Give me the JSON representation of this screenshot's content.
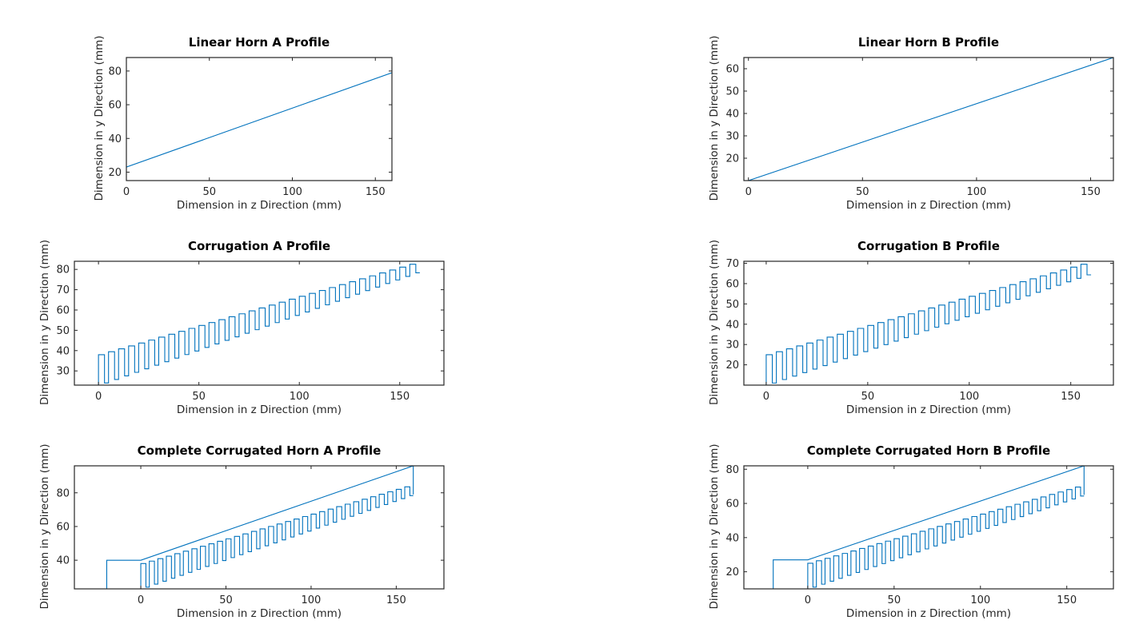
{
  "chart_data": [
    {
      "type": "line",
      "title": "Linear Horn A Profile",
      "xlabel": "Dimension in z Direction (mm)",
      "ylabel": "Dimension in y Direction (mm)",
      "xlim": [
        0,
        160
      ],
      "ylim": [
        15,
        88
      ],
      "xticks": [
        0,
        50,
        100,
        150
      ],
      "yticks": [
        20,
        40,
        60,
        80
      ],
      "grid": false,
      "legend": "none",
      "color": "#0072bd",
      "series": [
        {
          "x": [
            0,
            160
          ],
          "y": [
            23,
            79
          ]
        }
      ]
    },
    {
      "type": "line",
      "title": "Linear Horn B Profile",
      "xlabel": "Dimension in z Direction (mm)",
      "ylabel": "Dimension in y Direction (mm)",
      "xlim": [
        -2,
        160
      ],
      "ylim": [
        10,
        65
      ],
      "xticks": [
        0,
        50,
        100,
        150
      ],
      "yticks": [
        20,
        30,
        40,
        50,
        60
      ],
      "grid": false,
      "legend": "none",
      "color": "#0072bd",
      "series": [
        {
          "x": [
            0,
            160
          ],
          "y": [
            10,
            65
          ]
        }
      ]
    },
    {
      "type": "line",
      "title": "Corrugation A Profile",
      "xlabel": "Dimension in z Direction (mm)",
      "ylabel": "Dimension in y Direction (mm)",
      "xlim": [
        -12,
        172
      ],
      "ylim": [
        23,
        84
      ],
      "xticks": [
        0,
        50,
        100,
        150
      ],
      "yticks": [
        30,
        40,
        50,
        60,
        70,
        80
      ],
      "grid": false,
      "legend": "none",
      "color": "#0072bd",
      "corrugation": {
        "z_start": 0,
        "z_end": 160,
        "periods": 32,
        "tooth_fraction": 0.6,
        "top_start": 38,
        "top_end": 84,
        "bottom_start": 23,
        "bottom_end": 79
      }
    },
    {
      "type": "line",
      "title": "Corrugation B Profile",
      "xlabel": "Dimension in z Direction (mm)",
      "ylabel": "Dimension in y Direction (mm)",
      "xlim": [
        -11,
        171
      ],
      "ylim": [
        10,
        71
      ],
      "xticks": [
        0,
        50,
        100,
        150
      ],
      "yticks": [
        20,
        30,
        40,
        50,
        60,
        70
      ],
      "grid": false,
      "legend": "none",
      "color": "#0072bd",
      "corrugation": {
        "z_start": 0,
        "z_end": 160,
        "periods": 32,
        "tooth_fraction": 0.6,
        "top_start": 25,
        "top_end": 71,
        "bottom_start": 10,
        "bottom_end": 65
      }
    },
    {
      "type": "line",
      "title": "Complete Corrugated Horn A Profile",
      "xlabel": "Dimension in z Direction (mm)",
      "ylabel": "Dimension in y Direction (mm)",
      "xlim": [
        -39,
        178
      ],
      "ylim": [
        23,
        96
      ],
      "xticks": [
        0,
        50,
        100,
        150
      ],
      "yticks": [
        40,
        60,
        80
      ],
      "grid": false,
      "legend": "none",
      "color": "#0072bd",
      "outline": {
        "x": [
          -20,
          -20,
          0,
          160,
          160
        ],
        "y": [
          23,
          40,
          40,
          96,
          79
        ]
      },
      "corrugation": {
        "z_start": 0,
        "z_end": 160,
        "periods": 32,
        "tooth_fraction": 0.6,
        "top_start": 38,
        "top_end": 85,
        "bottom_start": 23,
        "bottom_end": 79
      }
    },
    {
      "type": "line",
      "title": "Complete Corrugated Horn B Profile",
      "xlabel": "Dimension in z Direction (mm)",
      "ylabel": "Dimension in y Direction (mm)",
      "xlim": [
        -37,
        177
      ],
      "ylim": [
        10,
        82
      ],
      "xticks": [
        0,
        50,
        100,
        150
      ],
      "yticks": [
        20,
        40,
        60,
        80
      ],
      "grid": false,
      "legend": "none",
      "color": "#0072bd",
      "outline": {
        "x": [
          -20,
          -20,
          0,
          160,
          160
        ],
        "y": [
          10,
          27,
          27,
          82,
          65
        ]
      },
      "corrugation": {
        "z_start": 0,
        "z_end": 160,
        "periods": 32,
        "tooth_fraction": 0.6,
        "top_start": 25,
        "top_end": 71,
        "bottom_start": 10,
        "bottom_end": 65
      }
    }
  ]
}
